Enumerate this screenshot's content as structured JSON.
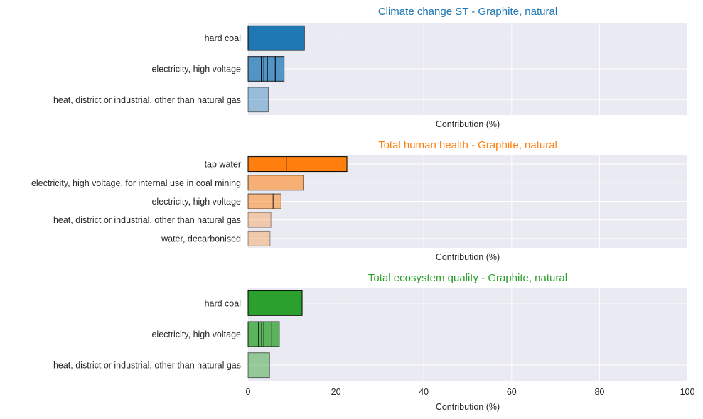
{
  "chart_data": [
    {
      "type": "bar",
      "orientation": "horizontal",
      "stacked": true,
      "title": "Climate change ST - Graphite, natural",
      "title_color": "#1f77b4",
      "color": "#1f77b4",
      "xlabel": "Contribution (%)",
      "xlim": [
        0,
        100
      ],
      "show_x_ticks": false,
      "x_ticks": [],
      "grid": true,
      "categories": [
        "hard coal",
        "electricity, high voltage",
        "heat, district or industrial, other than natural gas"
      ],
      "alphas": [
        1.0,
        0.75,
        0.4
      ],
      "segments": [
        [
          12.8
        ],
        [
          3.0,
          0.6,
          0.8,
          1.8,
          2.0
        ],
        [
          4.6
        ]
      ]
    },
    {
      "type": "bar",
      "orientation": "horizontal",
      "stacked": true,
      "title": "Total human health - Graphite, natural",
      "title_color": "#ff7f0e",
      "color": "#ff7f0e",
      "xlabel": "Contribution (%)",
      "xlim": [
        0,
        100
      ],
      "show_x_ticks": false,
      "x_ticks": [],
      "grid": true,
      "categories": [
        "tap water",
        "electricity, high voltage, for internal use in coal mining",
        "electricity, high voltage",
        "heat, district or industrial, other than natural gas",
        "water, decarbonised"
      ],
      "alphas": [
        1.0,
        0.55,
        0.5,
        0.3,
        0.3
      ],
      "segments": [
        [
          8.7,
          13.8
        ],
        [
          12.6
        ],
        [
          5.7,
          1.8
        ],
        [
          5.2
        ],
        [
          5.0
        ]
      ]
    },
    {
      "type": "bar",
      "orientation": "horizontal",
      "stacked": true,
      "title": "Total ecosystem quality - Graphite, natural",
      "title_color": "#2ca02c",
      "color": "#2ca02c",
      "xlabel": "Contribution (%)",
      "xlim": [
        0,
        100
      ],
      "show_x_ticks": true,
      "x_ticks": [
        "0",
        "20",
        "40",
        "60",
        "80",
        "100"
      ],
      "grid": true,
      "categories": [
        "hard coal",
        "electricity, high voltage",
        "heat, district or industrial, other than natural gas"
      ],
      "alphas": [
        1.0,
        0.75,
        0.45
      ],
      "segments": [
        [
          12.3
        ],
        [
          2.4,
          0.7,
          0.5,
          1.8,
          1.7
        ],
        [
          4.9
        ]
      ]
    }
  ]
}
